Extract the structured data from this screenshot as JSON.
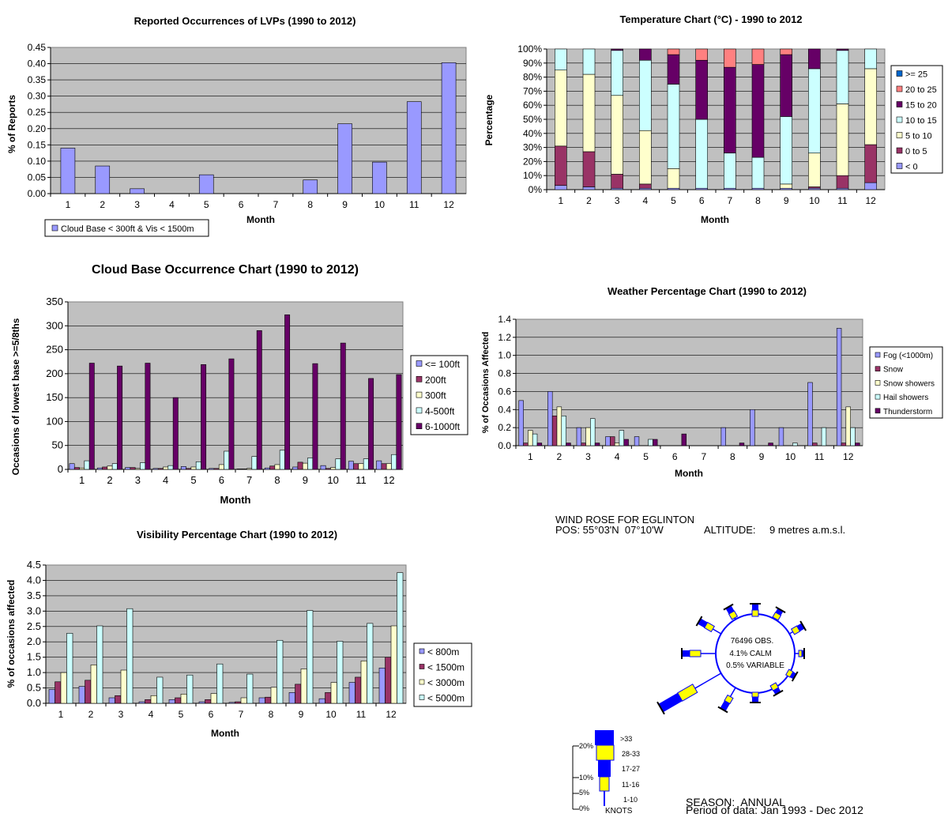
{
  "chart_data": [
    {
      "id": "lvp",
      "type": "bar",
      "title": "Reported Occurrences of LVPs (1990 to 2012)",
      "xlabel": "Month",
      "ylabel": "% of Reports",
      "ylim": [
        0,
        0.45
      ],
      "yticks": [
        "0.00",
        "0.05",
        "0.10",
        "0.15",
        "0.20",
        "0.25",
        "0.30",
        "0.35",
        "0.40",
        "0.45"
      ],
      "categories": [
        "1",
        "2",
        "3",
        "4",
        "5",
        "6",
        "7",
        "8",
        "9",
        "10",
        "11",
        "12"
      ],
      "series": [
        {
          "name": "Cloud Base < 300ft & Vis < 1500m",
          "color": "#9999ff",
          "values": [
            0.14,
            0.085,
            0.015,
            0,
            0.058,
            0,
            0,
            0.042,
            0.215,
            0.097,
            0.283,
            0.403
          ]
        }
      ],
      "grid": true,
      "legend": "bottom-left",
      "plot_bg": "#c0c0c0"
    },
    {
      "id": "temp",
      "type": "bar",
      "stacked": true,
      "title": "Temperature Chart (°C) - 1990 to 2012",
      "xlabel": "Month",
      "ylabel": "Percentage",
      "ylim": [
        0,
        100
      ],
      "yticks": [
        "0%",
        "10%",
        "20%",
        "30%",
        "40%",
        "50%",
        "60%",
        "70%",
        "80%",
        "90%",
        "100%"
      ],
      "categories": [
        "1",
        "2",
        "3",
        "4",
        "5",
        "6",
        "7",
        "8",
        "9",
        "10",
        "11",
        "12"
      ],
      "series": [
        {
          "name": "< 0",
          "color": "#9999ff",
          "values": [
            3,
            2,
            1,
            1,
            1,
            1,
            1,
            1,
            1,
            1,
            1,
            5
          ]
        },
        {
          "name": "0 to 5",
          "color": "#993366",
          "values": [
            28,
            25,
            10,
            3,
            0,
            0,
            0,
            0,
            0,
            1,
            9,
            27
          ]
        },
        {
          "name": "5 to 10",
          "color": "#ffffcc",
          "values": [
            54,
            55,
            56,
            38,
            14,
            0,
            0,
            0,
            3,
            24,
            51,
            54
          ]
        },
        {
          "name": "10 to 15",
          "color": "#ccffff",
          "values": [
            15,
            18,
            32,
            50,
            60,
            49,
            25,
            22,
            48,
            60,
            38,
            14
          ]
        },
        {
          "name": "15 to 20",
          "color": "#660066",
          "values": [
            0,
            0,
            1,
            8,
            21,
            42,
            61,
            66,
            44,
            14,
            1,
            0
          ]
        },
        {
          "name": "20 to 25",
          "color": "#ff8080",
          "values": [
            0,
            0,
            0,
            0,
            4,
            8,
            13,
            11,
            4,
            0,
            0,
            0
          ]
        },
        {
          "name": ">= 25",
          "color": "#0066cc",
          "values": [
            0,
            0,
            0,
            0,
            0,
            0,
            0,
            0,
            0,
            0,
            0,
            0
          ]
        }
      ],
      "legend_order": [
        ">= 25",
        "20 to 25",
        "15 to 20",
        "10 to 15",
        "5 to 10",
        "0 to 5",
        "< 0"
      ],
      "grid": true,
      "legend": "right",
      "plot_bg": "#c0c0c0"
    },
    {
      "id": "cloud",
      "type": "bar",
      "title": "Cloud Base Occurrence Chart (1990 to 2012)",
      "xlabel": "Month",
      "ylabel": "Occasions of lowest base >=5/8ths",
      "ylim": [
        0,
        350
      ],
      "yticks": [
        "0",
        "50",
        "100",
        "150",
        "200",
        "250",
        "300",
        "350"
      ],
      "categories": [
        "1",
        "2",
        "3",
        "4",
        "5",
        "6",
        "7",
        "8",
        "9",
        "10",
        "11",
        "12"
      ],
      "series": [
        {
          "name": "<= 100ft",
          "color": "#9999ff",
          "values": [
            12,
            3,
            4,
            2,
            6,
            2,
            1,
            3,
            5,
            8,
            17,
            18
          ]
        },
        {
          "name": "200ft",
          "color": "#993366",
          "values": [
            4,
            5,
            4,
            2,
            2,
            2,
            1,
            7,
            15,
            2,
            12,
            12
          ]
        },
        {
          "name": "300ft",
          "color": "#ffffcc",
          "values": [
            3,
            7,
            2,
            5,
            5,
            10,
            2,
            10,
            13,
            4,
            12,
            12
          ]
        },
        {
          "name": "4-500ft",
          "color": "#ccffff",
          "values": [
            18,
            12,
            14,
            8,
            16,
            38,
            27,
            40,
            24,
            22,
            22,
            31
          ]
        },
        {
          "name": "6-1000ft",
          "color": "#660066",
          "values": [
            222,
            216,
            222,
            150,
            219,
            231,
            290,
            323,
            221,
            264,
            190,
            198
          ]
        }
      ],
      "grid": true,
      "legend": "right",
      "plot_bg": "#c0c0c0"
    },
    {
      "id": "weather",
      "type": "bar",
      "title": "Weather Percentage Chart (1990 to 2012)",
      "xlabel": "Month",
      "ylabel": "% of Occasions Affected",
      "ylim": [
        0,
        1.4
      ],
      "yticks": [
        "0.0",
        "0.2",
        "0.4",
        "0.6",
        "0.8",
        "1.0",
        "1.2",
        "1.4"
      ],
      "categories": [
        "1",
        "2",
        "3",
        "4",
        "5",
        "6",
        "7",
        "8",
        "9",
        "10",
        "11",
        "12"
      ],
      "series": [
        {
          "name": "Fog (<1000m)",
          "color": "#9999ff",
          "values": [
            0.5,
            0.6,
            0.2,
            0.1,
            0.1,
            0,
            0,
            0.2,
            0.4,
            0.2,
            0.7,
            1.3
          ]
        },
        {
          "name": "Snow",
          "color": "#993366",
          "values": [
            0.03,
            0.33,
            0.03,
            0.1,
            0,
            0,
            0,
            0,
            0,
            0,
            0.03,
            0.03
          ]
        },
        {
          "name": "Snow showers",
          "color": "#ffffcc",
          "values": [
            0.17,
            0.43,
            0.2,
            0.03,
            0,
            0,
            0,
            0,
            0,
            0,
            0,
            0.43
          ]
        },
        {
          "name": "Hail showers",
          "color": "#ccffff",
          "values": [
            0.13,
            0.33,
            0.3,
            0.17,
            0.07,
            0,
            0,
            0,
            0,
            0.03,
            0.2,
            0.2
          ]
        },
        {
          "name": "Thunderstorm",
          "color": "#660066",
          "values": [
            0.03,
            0.03,
            0.03,
            0.07,
            0.07,
            0.13,
            0,
            0.03,
            0.03,
            0,
            0,
            0.03
          ]
        }
      ],
      "grid": true,
      "legend": "right",
      "plot_bg": "#c0c0c0"
    },
    {
      "id": "vis",
      "type": "bar",
      "title": "Visibility Percentage Chart (1990 to 2012)",
      "xlabel": "Month",
      "ylabel": "% of occasions affected",
      "ylim": [
        0,
        4.5
      ],
      "yticks": [
        "0.0",
        "0.5",
        "1.0",
        "1.5",
        "2.0",
        "2.5",
        "3.0",
        "3.5",
        "4.0",
        "4.5"
      ],
      "categories": [
        "1",
        "2",
        "3",
        "4",
        "5",
        "6",
        "7",
        "8",
        "9",
        "10",
        "11",
        "12"
      ],
      "series": [
        {
          "name": "< 800m",
          "color": "#9999ff",
          "values": [
            0.45,
            0.55,
            0.18,
            0.05,
            0.12,
            0.05,
            0.03,
            0.18,
            0.35,
            0.15,
            0.68,
            1.15
          ]
        },
        {
          "name": "< 1500m",
          "color": "#993366",
          "values": [
            0.7,
            0.75,
            0.25,
            0.12,
            0.18,
            0.12,
            0.05,
            0.2,
            0.62,
            0.35,
            0.85,
            1.5
          ]
        },
        {
          "name": "< 3000m",
          "color": "#ffffcc",
          "values": [
            1.0,
            1.25,
            1.08,
            0.25,
            0.3,
            0.32,
            0.18,
            0.52,
            1.12,
            0.68,
            1.38,
            2.52
          ]
        },
        {
          "name": "< 5000m",
          "color": "#ccffff",
          "values": [
            2.28,
            2.52,
            3.08,
            0.85,
            0.92,
            1.28,
            0.95,
            2.05,
            3.02,
            2.02,
            2.6,
            4.25
          ]
        }
      ],
      "grid": true,
      "legend": "right",
      "plot_bg": "#c0c0c0"
    }
  ],
  "wind_rose": {
    "title": "WIND ROSE FOR EGLINTON",
    "position": "POS: 55°03'N  07°10'W",
    "altitude_label": "ALTITUDE:",
    "altitude_value": "9 metres a.m.s.l.",
    "center_lines": [
      "76496 OBS.",
      "4.1% CALM",
      "0.5% VARIABLE"
    ],
    "season": "SEASON:  ANNUAL",
    "period": "Period of data: Jan 1993 - Dec 2012",
    "scale_labels": [
      "20%",
      "10%",
      "5%",
      "0%"
    ],
    "speed_classes": [
      ">33",
      "28-33",
      "17-27",
      "11-16",
      "1-10"
    ],
    "units": "KNOTS",
    "colors": {
      "blue": "#0000ff",
      "yellow": "#ffff00"
    }
  }
}
